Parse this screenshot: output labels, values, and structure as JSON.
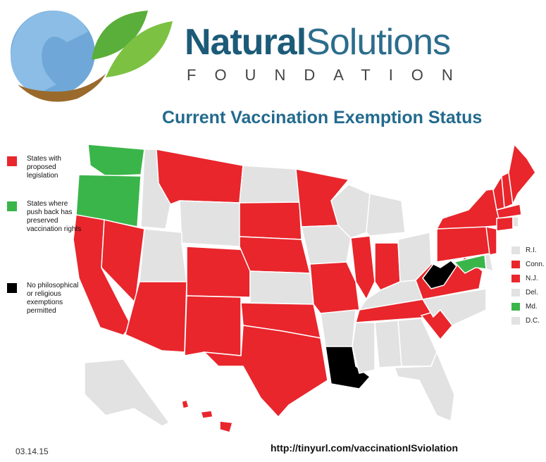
{
  "header": {
    "brand_bold": "Natural",
    "brand_rest": "Solutions",
    "tagline": "FOUNDATION"
  },
  "title": "Current Vaccination Exemption Status",
  "legend": [
    {
      "label": "States with proposed legislation",
      "color": "#e8262c"
    },
    {
      "label": "States where push back has preserved vaccination rights",
      "color": "#3ab54a"
    },
    {
      "label": "No philosophical or religious exemptions permitted",
      "color": "#000000"
    }
  ],
  "small_states": [
    {
      "label": "R.I.",
      "color": "#e2e2e2"
    },
    {
      "label": "Conn.",
      "color": "#e8262c"
    },
    {
      "label": "N.J.",
      "color": "#e8262c"
    },
    {
      "label": "Del.",
      "color": "#e2e2e2"
    },
    {
      "label": "Md.",
      "color": "#3ab54a"
    },
    {
      "label": "D.C.",
      "color": "#e2e2e2"
    }
  ],
  "date": "03.14.15",
  "url": "http://tinyurl.com/vaccinationISviolation"
}
